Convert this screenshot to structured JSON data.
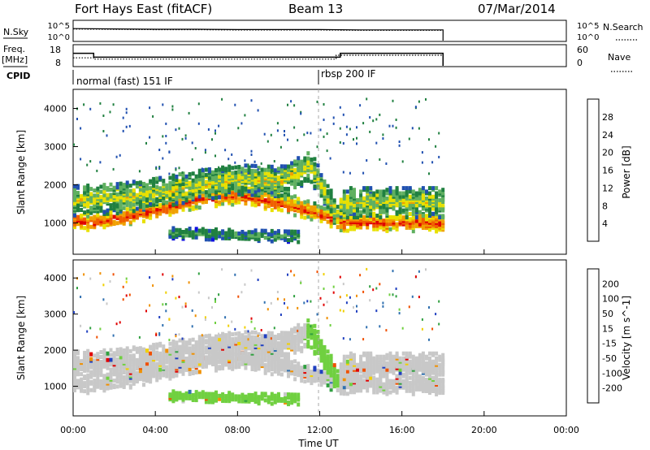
{
  "header": {
    "radar": "Fort Hays East (fitACF)",
    "beam": "Beam 13",
    "date": "07/Mar/2014"
  },
  "left_labels": {
    "nsky": "N.Sky",
    "freq_line1": "Freq.",
    "freq_line2": "[MHz]",
    "cpid": "CPID"
  },
  "right_labels": {
    "nsearch": "N.Search",
    "nave": "Nave"
  },
  "cpid_labels": [
    "normal (fast) 151 IF",
    "rbsp 200 IF"
  ],
  "colors": {
    "power": [
      "#1010e0",
      "#2050b0",
      "#208040",
      "#60b060",
      "#e8e000",
      "#f0a000",
      "#f06000",
      "#e00000"
    ],
    "velocity": [
      "#2040c0",
      "#3070b0",
      "#30a040",
      "#70d040",
      "#c8c8c8",
      "#f0d000",
      "#f09000",
      "#f05000",
      "#e00000"
    ]
  },
  "chart_data": [
    {
      "type": "line",
      "panel": "noise",
      "ylabel": "N.Sky",
      "y_ticks_left": [
        "10^5",
        "10^0"
      ],
      "y_ticks_right": [
        "10^5",
        "10^0"
      ],
      "right_label": "N.Search",
      "x_range_hours": [
        0,
        24
      ],
      "series": [
        {
          "name": "N.Sky",
          "x": [
            0,
            2,
            4,
            6,
            8,
            10,
            12,
            14,
            16,
            18
          ],
          "y": [
            3.2,
            3.1,
            3.0,
            3.0,
            2.9,
            2.9,
            2.9,
            2.8,
            2.8,
            2.8
          ]
        }
      ]
    },
    {
      "type": "line",
      "panel": "frequency",
      "ylabel": "Freq. [MHz]",
      "y_ticks_left": [
        "18",
        "8"
      ],
      "y_ticks_right": [
        "60",
        "0"
      ],
      "right_label": "Nave",
      "series": [
        {
          "name": "Freq",
          "x": [
            0,
            1,
            1,
            13,
            13,
            18
          ],
          "y": [
            14,
            14,
            12,
            12,
            14,
            14
          ]
        },
        {
          "name": "Nave",
          "x": [
            0,
            1,
            1,
            12.8,
            12.8,
            18
          ],
          "y": [
            22,
            22,
            18,
            18,
            30,
            30
          ]
        }
      ]
    },
    {
      "type": "heatmap",
      "panel": "power",
      "ylabel": "Slant Range [km]",
      "colorbar_label": "Power [dB]",
      "colorbar_ticks": [
        "28",
        "24",
        "20",
        "16",
        "12",
        "8",
        "4"
      ],
      "y_ticks": [
        "4000",
        "3000",
        "2000",
        "1000"
      ],
      "x_range_hours": [
        0,
        24
      ],
      "y_range_km": [
        180,
        4500
      ],
      "data_end_hour": 18,
      "bands": [
        {
          "x": [
            0,
            1,
            3,
            6,
            8,
            10,
            11.5,
            12.8,
            13,
            18
          ],
          "center_km": [
            1150,
            1100,
            1300,
            1700,
            1800,
            1600,
            1400,
            1150,
            1100,
            1080
          ],
          "width_km": 250,
          "level": 0.85
        },
        {
          "x": [
            0,
            2,
            4,
            6,
            8,
            10,
            11.5,
            12.8,
            13,
            18
          ],
          "center_km": [
            1650,
            1700,
            1850,
            2050,
            2200,
            2150,
            2550,
            1200,
            1600,
            1600
          ],
          "width_km": 400,
          "level": 0.55
        },
        {
          "x": [
            4.5,
            11
          ],
          "center_km": [
            800,
            700
          ],
          "width_km": 150,
          "level": 0.35
        }
      ],
      "series": []
    },
    {
      "type": "heatmap",
      "panel": "velocity",
      "ylabel": "Slant Range [km]",
      "colorbar_label": "Velocity [m s^-1]",
      "colorbar_ticks": [
        "200",
        "100",
        "50",
        "15",
        "-15",
        "-50",
        "-100",
        "-200"
      ],
      "y_ticks": [
        "4000",
        "3000",
        "2000",
        "1000"
      ],
      "x_range_hours": [
        0,
        24
      ],
      "data_end_hour": 18,
      "series": []
    }
  ],
  "x_axis": {
    "ticks": [
      "00:00",
      "04:00",
      "08:00",
      "12:00",
      "16:00",
      "20:00",
      "00:00"
    ],
    "label": "Time UT"
  }
}
